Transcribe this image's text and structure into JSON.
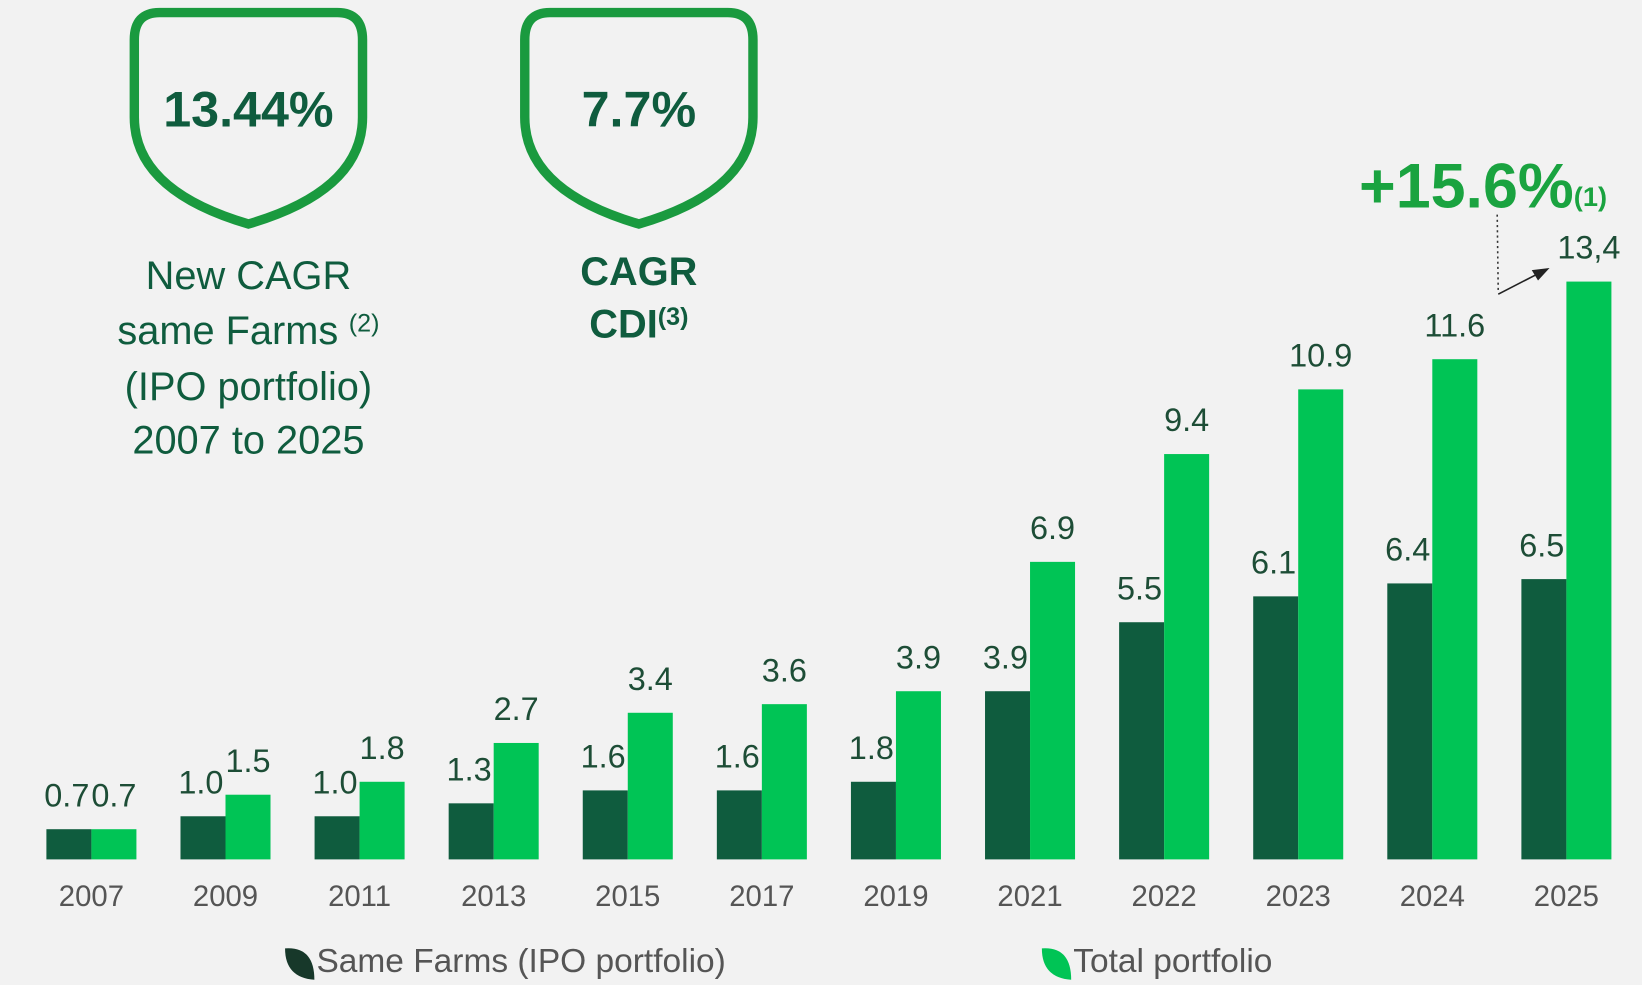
{
  "badges": [
    {
      "value": "13.44%",
      "caption": [
        {
          "text": "New CAGR"
        },
        {
          "text": "same Farms",
          "sup": "(2)"
        },
        {
          "text": "(IPO portfolio)"
        },
        {
          "text": "2007 to 2025"
        }
      ]
    },
    {
      "value": "7.7%",
      "caption": [
        {
          "text": "CAGR"
        },
        {
          "text": "CDI",
          "sup": "(3)"
        }
      ]
    }
  ],
  "chart_data": {
    "type": "bar",
    "categories": [
      "2007",
      "2009",
      "2011",
      "2013",
      "2015",
      "2017",
      "2019",
      "2021",
      "2022",
      "2023",
      "2024",
      "2025"
    ],
    "series": [
      {
        "name": "Same Farms (IPO portfolio)",
        "color": "#0f5c3e",
        "values": [
          0.7,
          1.0,
          1.0,
          1.3,
          1.6,
          1.6,
          1.8,
          3.9,
          5.5,
          6.1,
          6.4,
          6.5
        ],
        "value_labels": [
          "0.7",
          "1.0",
          "1.0",
          "1.3",
          "1.6",
          "1.6",
          "1.8",
          "3.9",
          "5.5",
          "6.1",
          "6.4",
          "6.5"
        ]
      },
      {
        "name": "Total portfolio",
        "color": "#00c455",
        "values": [
          0.7,
          1.5,
          1.8,
          2.7,
          3.4,
          3.6,
          3.9,
          6.9,
          9.4,
          10.9,
          11.6,
          13.4
        ],
        "value_labels": [
          "0.7",
          "1.5",
          "1.8",
          "2.7",
          "3.4",
          "3.6",
          "3.9",
          "6.9",
          "9.4",
          "10.9",
          "11.6",
          "13,4"
        ]
      }
    ],
    "annotation": {
      "text": "+15.6%",
      "note": "(1)"
    }
  }
}
